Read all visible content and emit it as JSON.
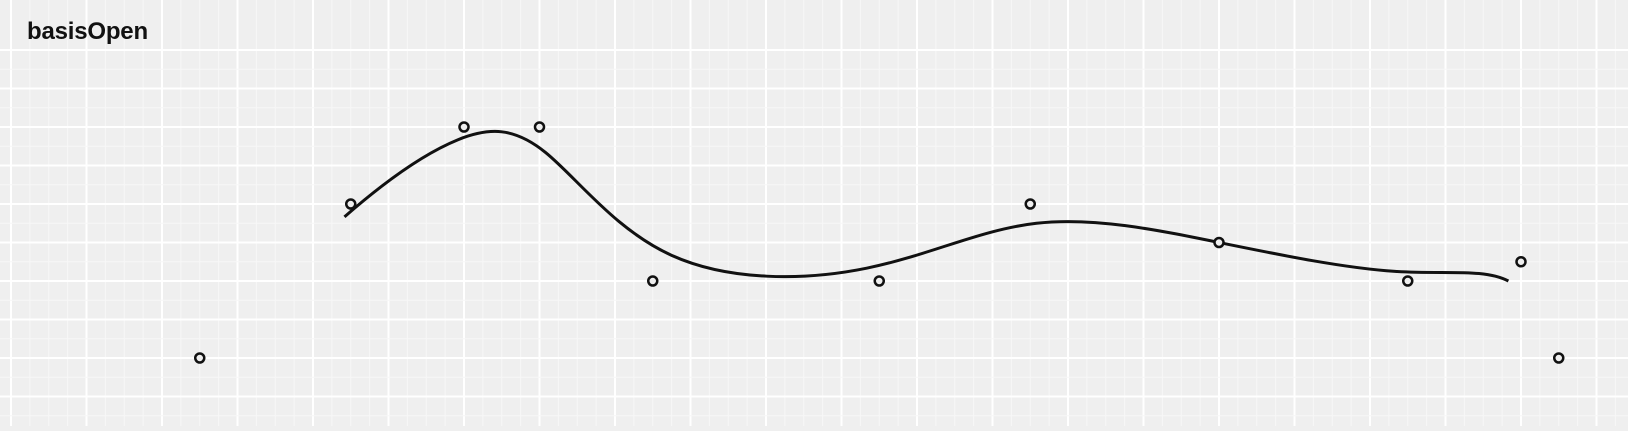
{
  "title": "basisOpen",
  "colors": {
    "background": "#efefef",
    "grid_minor": "#f7f7f7",
    "grid_major": "#ffffff",
    "ink": "#111111"
  },
  "points": [
    {
      "x": 1,
      "y": 0
    },
    {
      "x": 5,
      "y": 2
    },
    {
      "x": 8,
      "y": 3
    },
    {
      "x": 10,
      "y": 3
    },
    {
      "x": 13,
      "y": 1
    },
    {
      "x": 19,
      "y": 1
    },
    {
      "x": 23,
      "y": 2
    },
    {
      "x": 28,
      "y": 1.5
    },
    {
      "x": 33,
      "y": 1
    },
    {
      "x": 36,
      "y": 1.25
    },
    {
      "x": 37,
      "y": 0
    }
  ]
}
